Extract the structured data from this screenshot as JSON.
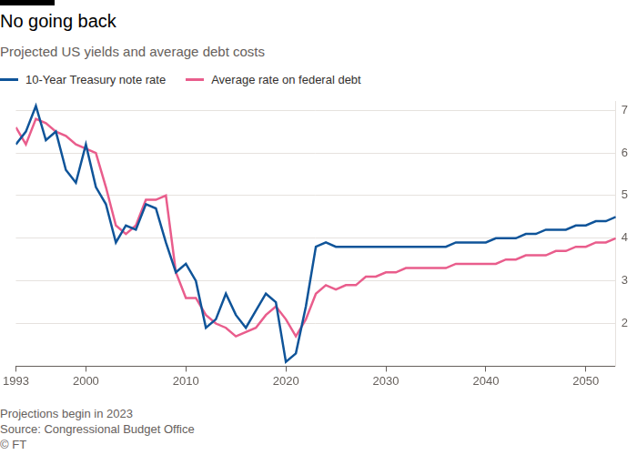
{
  "chart_data": {
    "type": "line",
    "title": "No going back",
    "subtitle": "Projected US yields and average debt costs",
    "note": "Projections begin in 2023",
    "source": "Source: Congressional Budget Office",
    "credit": "© FT",
    "legend": "top-left",
    "grid": true,
    "x": [
      1993,
      1994,
      1995,
      1996,
      1997,
      1998,
      1999,
      2000,
      2001,
      2002,
      2003,
      2004,
      2005,
      2006,
      2007,
      2008,
      2009,
      2010,
      2011,
      2012,
      2013,
      2014,
      2015,
      2016,
      2017,
      2018,
      2019,
      2020,
      2021,
      2022,
      2023,
      2024,
      2025,
      2026,
      2027,
      2028,
      2029,
      2030,
      2031,
      2032,
      2033,
      2034,
      2035,
      2036,
      2037,
      2038,
      2039,
      2040,
      2041,
      2042,
      2043,
      2044,
      2045,
      2046,
      2047,
      2048,
      2049,
      2050,
      2051,
      2052,
      2053
    ],
    "series": [
      {
        "name": "10-Year Treasury note rate",
        "color": "#0f5499",
        "values": [
          6.2,
          6.5,
          7.1,
          6.3,
          6.5,
          5.6,
          5.3,
          6.2,
          5.2,
          4.8,
          3.9,
          4.3,
          4.2,
          4.8,
          4.7,
          3.9,
          3.2,
          3.4,
          3.0,
          1.9,
          2.1,
          2.7,
          2.2,
          1.9,
          2.3,
          2.7,
          2.5,
          1.1,
          1.3,
          2.4,
          3.8,
          3.9,
          3.8,
          3.8,
          3.8,
          3.8,
          3.8,
          3.8,
          3.8,
          3.8,
          3.8,
          3.8,
          3.8,
          3.8,
          3.9,
          3.9,
          3.9,
          3.9,
          4.0,
          4.0,
          4.0,
          4.1,
          4.1,
          4.2,
          4.2,
          4.2,
          4.3,
          4.3,
          4.4,
          4.4,
          4.5
        ]
      },
      {
        "name": "Average rate on federal debt",
        "color": "#e95d8c",
        "values": [
          6.6,
          6.2,
          6.8,
          6.7,
          6.5,
          6.4,
          6.2,
          6.1,
          6.0,
          5.2,
          4.3,
          4.1,
          4.3,
          4.9,
          4.9,
          5.0,
          3.2,
          2.6,
          2.6,
          2.2,
          2.0,
          1.9,
          1.7,
          1.8,
          1.9,
          2.2,
          2.4,
          2.1,
          1.7,
          2.1,
          2.7,
          2.9,
          2.8,
          2.9,
          2.9,
          3.1,
          3.1,
          3.2,
          3.2,
          3.3,
          3.3,
          3.3,
          3.3,
          3.3,
          3.4,
          3.4,
          3.4,
          3.4,
          3.4,
          3.5,
          3.5,
          3.6,
          3.6,
          3.6,
          3.7,
          3.7,
          3.8,
          3.8,
          3.9,
          3.9,
          4.0
        ]
      }
    ],
    "xlim": [
      1993,
      2053
    ],
    "xticks": [
      1993,
      2000,
      2010,
      2020,
      2030,
      2040,
      2050
    ],
    "ylim": [
      1,
      7.2
    ],
    "yticks": [
      2,
      3,
      4,
      5,
      6,
      7
    ]
  }
}
